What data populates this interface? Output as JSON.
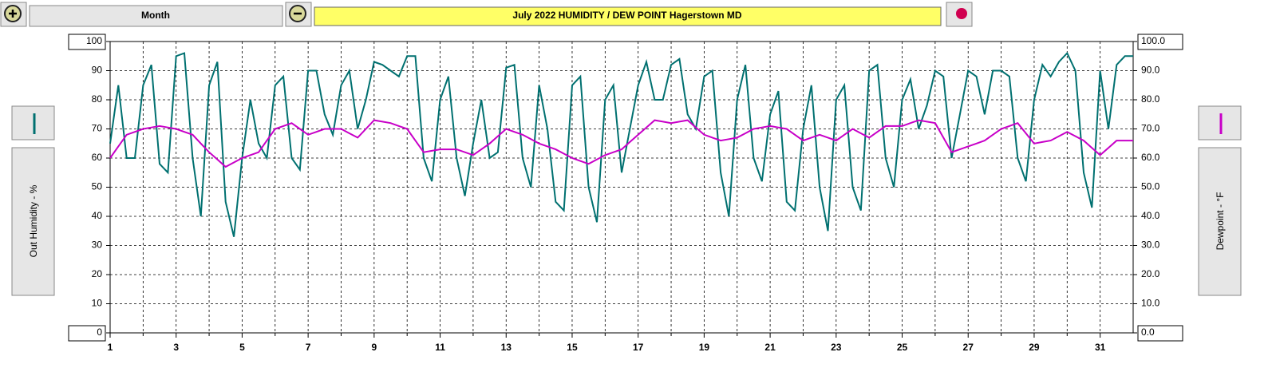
{
  "toolbar": {
    "period": "Month"
  },
  "chart_data": {
    "type": "line",
    "title": "July  2022   HUMIDITY / DEW POINT  Hagerstown MD",
    "ylabel": "Out Humidity - %",
    "y2label": "Dewpoint - °F",
    "x": [
      1,
      1.25,
      1.5,
      1.75,
      2,
      2.25,
      2.5,
      2.75,
      3,
      3.25,
      3.5,
      3.75,
      4,
      4.25,
      4.5,
      4.75,
      5,
      5.25,
      5.5,
      5.75,
      6,
      6.25,
      6.5,
      6.75,
      7,
      7.25,
      7.5,
      7.75,
      8,
      8.25,
      8.5,
      8.75,
      9,
      9.25,
      9.5,
      9.75,
      10,
      10.25,
      10.5,
      10.75,
      11,
      11.25,
      11.5,
      11.75,
      12,
      12.25,
      12.5,
      12.75,
      13,
      13.25,
      13.5,
      13.75,
      14,
      14.25,
      14.5,
      14.75,
      15,
      15.25,
      15.5,
      15.75,
      16,
      16.25,
      16.5,
      16.75,
      17,
      17.25,
      17.5,
      17.75,
      18,
      18.25,
      18.5,
      18.75,
      19,
      19.25,
      19.5,
      19.75,
      20,
      20.25,
      20.5,
      20.75,
      21,
      21.25,
      21.5,
      21.75,
      22,
      22.25,
      22.5,
      22.75,
      23,
      23.25,
      23.5,
      23.75,
      24,
      24.25,
      24.5,
      24.75,
      25,
      25.25,
      25.5,
      25.75,
      26,
      26.25,
      26.5,
      26.75,
      27,
      27.25,
      27.5,
      27.75,
      28,
      28.25,
      28.5,
      28.75,
      29,
      29.25,
      29.5,
      29.75,
      30,
      30.25,
      30.5,
      30.75,
      31,
      31.25,
      31.5,
      31.75,
      32
    ],
    "series": [
      {
        "color": "#007070",
        "axis": "y",
        "values": [
          65,
          85,
          60,
          60,
          85,
          92,
          58,
          55,
          95,
          96,
          60,
          40,
          85,
          93,
          45,
          33,
          60,
          80,
          65,
          60,
          85,
          88,
          60,
          56,
          90,
          90,
          75,
          68,
          85,
          90,
          70,
          80,
          93,
          92,
          90,
          88,
          95,
          95,
          60,
          52,
          80,
          88,
          60,
          47,
          65,
          80,
          60,
          62,
          91,
          92,
          60,
          50,
          85,
          70,
          45,
          42,
          85,
          88,
          50,
          38,
          80,
          85,
          55,
          70,
          85,
          93,
          80,
          80,
          92,
          94,
          75,
          70,
          88,
          90,
          55,
          40,
          80,
          92,
          60,
          52,
          75,
          83,
          45,
          42,
          70,
          85,
          50,
          35,
          80,
          85,
          50,
          42,
          90,
          92,
          60,
          50,
          80,
          87,
          70,
          78,
          90,
          88,
          60,
          75,
          90,
          88,
          75,
          90,
          90,
          88,
          60,
          52,
          80,
          92,
          88,
          93,
          96,
          90,
          55,
          43,
          90,
          70,
          92,
          95,
          95
        ]
      },
      {
        "color": "#c800c8",
        "axis": "y2",
        "values": [
          60,
          64,
          68,
          69,
          70,
          70.5,
          71,
          70.5,
          70,
          69,
          68,
          65,
          62,
          59.5,
          57,
          58.5,
          60,
          61,
          62,
          66,
          70,
          71,
          72,
          70,
          68,
          69,
          70,
          70,
          70,
          68.5,
          67,
          70,
          73,
          72.5,
          72,
          71,
          70,
          66,
          62,
          62.5,
          63,
          63,
          63,
          62,
          61,
          63,
          65,
          67.5,
          70,
          69,
          68,
          66.5,
          65,
          64,
          63,
          61.5,
          60,
          59,
          58,
          59.5,
          61,
          62,
          63,
          65.5,
          68,
          70.5,
          73,
          72.5,
          72,
          72.5,
          73,
          70.5,
          68,
          67,
          66,
          66.5,
          67,
          68.5,
          70,
          70.5,
          71,
          70.5,
          70,
          68,
          66,
          67,
          68,
          67,
          66,
          68,
          70,
          68.5,
          67,
          69,
          71,
          71,
          71,
          72,
          73,
          72.5,
          72,
          67,
          62,
          63,
          64,
          65,
          66,
          68,
          70,
          71,
          72,
          68.5,
          65,
          65.5,
          66,
          67.5,
          69,
          67.5,
          66,
          63.5,
          61,
          63.5,
          66,
          66,
          66
        ]
      }
    ],
    "xlim": [
      1,
      32
    ],
    "xticks": [
      1,
      3,
      5,
      7,
      9,
      11,
      13,
      15,
      17,
      19,
      21,
      23,
      25,
      27,
      29,
      31
    ],
    "xminor": [
      2,
      4,
      6,
      8,
      10,
      12,
      14,
      16,
      18,
      20,
      22,
      24,
      26,
      28,
      30
    ],
    "ylim": [
      0,
      100
    ],
    "yticks": [
      0,
      10,
      20,
      30,
      40,
      50,
      60,
      70,
      80,
      90,
      100
    ],
    "y2lim": [
      0,
      100
    ],
    "y2ticks": [
      {
        "value": 0,
        "label": "0.0"
      },
      {
        "value": 10,
        "label": "10.0"
      },
      {
        "value": 20,
        "label": "20.0"
      },
      {
        "value": 30,
        "label": "30.0"
      },
      {
        "value": 40,
        "label": "40.0"
      },
      {
        "value": 50,
        "label": "50.0"
      },
      {
        "value": 60,
        "label": "60.0"
      },
      {
        "value": 70,
        "label": "70.0"
      },
      {
        "value": 80,
        "label": "80.0"
      },
      {
        "value": 90,
        "label": "90.0"
      },
      {
        "value": 100,
        "label": "100.0"
      }
    ],
    "grid": true
  }
}
